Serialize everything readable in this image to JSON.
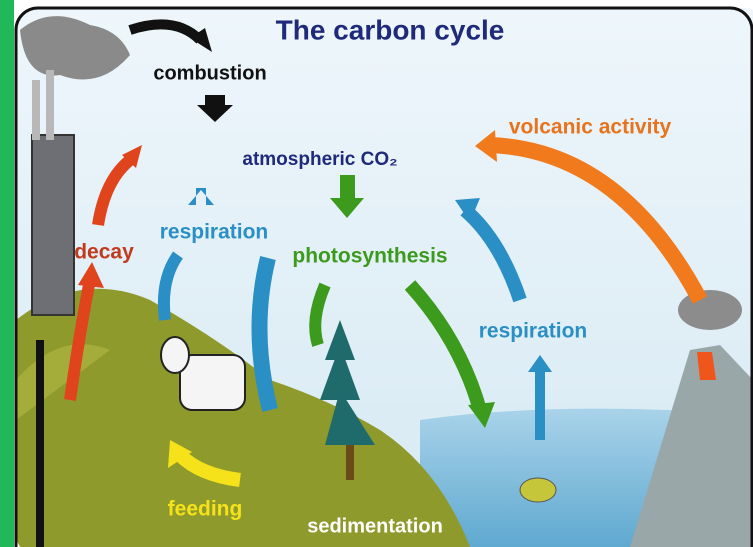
{
  "title": "The carbon cycle",
  "labels": [
    {
      "text": "combustion"
    },
    {
      "text": "atmospheric CO₂"
    },
    {
      "text": "volcanic activity"
    },
    {
      "text": "decay"
    },
    {
      "text": "respiration"
    },
    {
      "text": "photosynthesis"
    },
    {
      "text": "respiration"
    },
    {
      "text": "feeding"
    },
    {
      "text": "sedimentation"
    }
  ]
}
